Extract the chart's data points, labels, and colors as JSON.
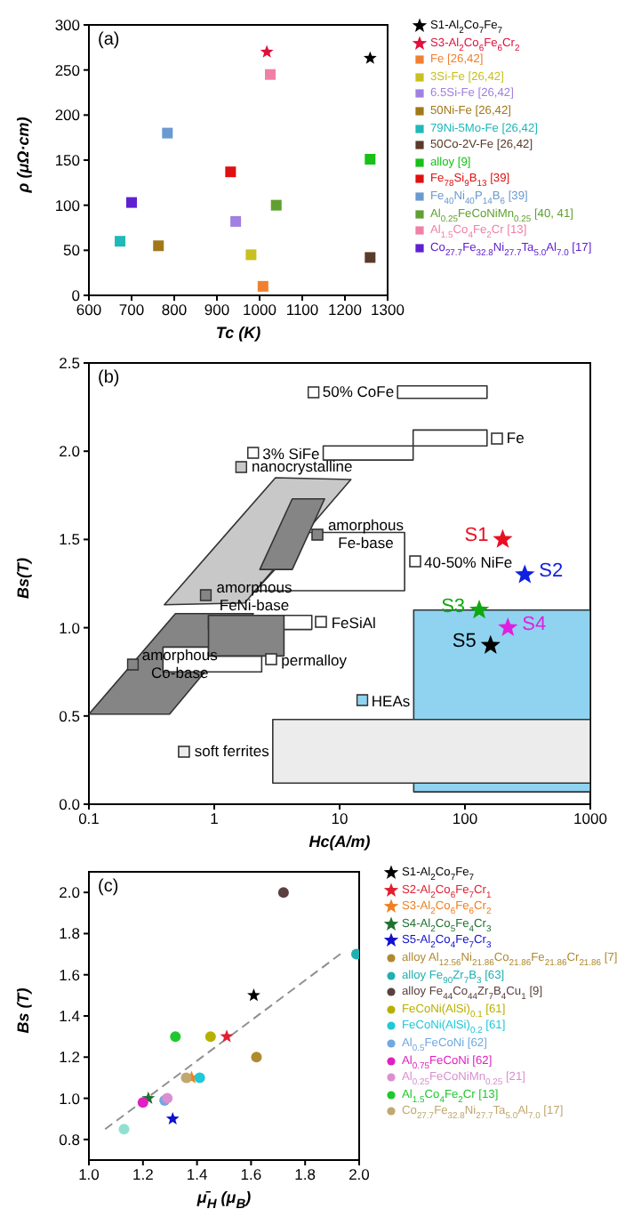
{
  "chart_data": [
    {
      "type": "scatter",
      "title": "(a)",
      "xlabel": "Tc (K)",
      "ylabel": "ρ (μΩ·cm)",
      "xlim": [
        600,
        1300
      ],
      "xticks": [
        600,
        700,
        800,
        900,
        1000,
        1100,
        1200,
        1300
      ],
      "ylim": [
        0,
        300
      ],
      "yticks": [
        0,
        50,
        100,
        150,
        200,
        250,
        300
      ],
      "legend": "right",
      "series": [
        {
          "name": "S1-Al$_{2}$Co$_{7}$Fe$_{7}$",
          "color": "#000000",
          "marker": "star",
          "x": [
            1259
          ],
          "values": [
            263
          ]
        },
        {
          "name": "S3-Al$_{2}$Co$_{6}$Fe$_{6}$Cr$_{2}$",
          "color": "#e0103c",
          "marker": "star",
          "x": [
            1017
          ],
          "values": [
            270
          ]
        },
        {
          "name": "Fe [26,42]",
          "color": "#f08030",
          "marker": "square",
          "x": [
            1008
          ],
          "values": [
            10
          ]
        },
        {
          "name": "3Si-Fe [26,42]",
          "color": "#c8c020",
          "marker": "square",
          "x": [
            980
          ],
          "values": [
            45
          ]
        },
        {
          "name": "6.5Si-Fe [26,42]",
          "color": "#a080e0",
          "marker": "square",
          "x": [
            944
          ],
          "values": [
            82
          ]
        },
        {
          "name": "50Ni-Fe [26,42]",
          "color": "#a07818",
          "marker": "square",
          "x": [
            763
          ],
          "values": [
            55
          ]
        },
        {
          "name": "79Ni-5Mo-Fe [26,42]",
          "color": "#20b8b8",
          "marker": "square",
          "x": [
            673
          ],
          "values": [
            60
          ]
        },
        {
          "name": "50Co-2V-Fe [26,42]",
          "color": "#5a3a28",
          "marker": "square",
          "x": [
            1259
          ],
          "values": [
            42
          ]
        },
        {
          "name": "alloy [9]",
          "color": "#18c018",
          "marker": "square",
          "x": [
            1259
          ],
          "values": [
            151
          ]
        },
        {
          "name": "Fe$_{78}$Si$_{9}$B$_{13}$ [39]",
          "color": "#e01010",
          "marker": "square",
          "x": [
            932
          ],
          "values": [
            137
          ]
        },
        {
          "name": "Fe$_{40}$Ni$_{40}$P$_{14}$B$_{6}$ [39]",
          "color": "#6a9ad0",
          "marker": "square",
          "x": [
            784
          ],
          "values": [
            180
          ]
        },
        {
          "name": "Al$_{0.25}$FeCoNiMn$_{0.25}$ [40, 41]",
          "color": "#60a030",
          "marker": "square",
          "x": [
            1039
          ],
          "values": [
            100
          ]
        },
        {
          "name": "Al$_{1.5}$Co$_{4}$Fe$_{2}$Cr [13]",
          "color": "#f080a8",
          "marker": "square",
          "x": [
            1025
          ],
          "values": [
            245
          ]
        },
        {
          "name": "Co$_{27.7}$Fe$_{32.8}$Ni$_{27.7}$Ta$_{5.0}$Al$_{7.0}$ [17]",
          "color": "#6020d0",
          "marker": "square",
          "x": [
            700
          ],
          "values": [
            103
          ]
        }
      ]
    },
    {
      "type": "scatter",
      "title": "(b)",
      "xlabel": "Hc(A/m)",
      "ylabel": "Bs(T)",
      "log": "x",
      "xlim": [
        0.1,
        1000
      ],
      "xticks": [
        0.1,
        1,
        10,
        100,
        1000
      ],
      "ylim": [
        0,
        2.5
      ],
      "yticks": [
        {
          "value": 0,
          "label": "0.0"
        },
        0.5,
        {
          "value": 1,
          "label": "1.0"
        },
        1.5,
        {
          "value": 2,
          "label": "2.0"
        },
        2.5
      ],
      "legend": "center",
      "series": [
        {
          "type": "area",
          "name": "50% CoFe",
          "color": "#ffffff",
          "x": [
            29,
            150,
            150,
            29,
            29
          ],
          "values": [
            2.3,
            2.3,
            2.37,
            2.37,
            2.3
          ]
        },
        {
          "type": "area",
          "name": "3% SiFe",
          "color": "#ffffff",
          "x": [
            7.4,
            38.6,
            38.6,
            7.4,
            7.4
          ],
          "values": [
            1.95,
            1.95,
            2.03,
            2.03,
            1.95
          ]
        },
        {
          "type": "area",
          "name": "Fe",
          "color": "#ffffff",
          "x": [
            38.6,
            150,
            150,
            38.6,
            38.6
          ],
          "values": [
            2.03,
            2.03,
            2.12,
            2.12,
            2.03
          ]
        },
        {
          "type": "area",
          "name": "nanocrystalline",
          "color": "#c8c8c8",
          "x": [
            0.4,
            1.75,
            12.3,
            3.08,
            0.4
          ],
          "values": [
            1.13,
            1.14,
            1.84,
            1.85,
            1.13
          ]
        },
        {
          "type": "area",
          "name": "40-50% NiFe",
          "color": "#ffffff",
          "x": [
            2.13,
            33,
            33,
            5.7,
            2.13
          ],
          "values": [
            1.21,
            1.21,
            1.54,
            1.54,
            1.21
          ]
        },
        {
          "type": "area",
          "name": "amorphous\nFe-base",
          "color": "#858585",
          "x": [
            2.31,
            4.19,
            7.59,
            4.19,
            2.31
          ],
          "values": [
            1.33,
            1.33,
            1.73,
            1.73,
            1.33
          ]
        },
        {
          "type": "area",
          "name": "amorphous\nCo-base",
          "color": "#858585",
          "x": [
            0.1,
            0.44,
            2.05,
            0.49,
            0.1
          ],
          "values": [
            0.51,
            0.51,
            1.08,
            1.08,
            0.51
          ]
        },
        {
          "type": "area",
          "name": "FeSiAl",
          "color": "#ffffff",
          "x": [
            0.9,
            6,
            6,
            0.9,
            0.9
          ],
          "values": [
            0.99,
            0.99,
            1.07,
            1.07,
            0.99
          ]
        },
        {
          "type": "area",
          "name": "permalloy",
          "color": "#ffffff",
          "x": [
            0.39,
            2.39,
            2.39,
            0.9,
            0.9,
            0.39,
            0.39
          ],
          "values": [
            0.75,
            0.75,
            0.84,
            0.84,
            0.89,
            0.89,
            0.75
          ]
        },
        {
          "type": "area",
          "name": "amorphous\nFeNi-base",
          "color": "#858585",
          "x": [
            0.9,
            3.6,
            3.6,
            0.9,
            0.9
          ],
          "values": [
            0.84,
            0.84,
            1.07,
            1.07,
            0.84
          ]
        },
        {
          "type": "area",
          "name": "HEAs",
          "color": "#8fd3f0",
          "x": [
            39,
            1000,
            1000,
            39,
            39
          ],
          "values": [
            0.07,
            0.07,
            1.1,
            1.1,
            0.07
          ]
        },
        {
          "type": "area",
          "name": "soft ferrites",
          "color": "#ececec",
          "x": [
            2.93,
            1000,
            1000,
            2.93,
            2.93
          ],
          "values": [
            0.12,
            0.12,
            0.48,
            0.48,
            0.12
          ]
        },
        {
          "name": "S1",
          "color": "#e81020",
          "marker": "star",
          "x": [
            200
          ],
          "values": [
            1.5
          ]
        },
        {
          "name": "S2",
          "color": "#1020e0",
          "marker": "star",
          "x": [
            300
          ],
          "values": [
            1.3
          ]
        },
        {
          "name": "S3",
          "color": "#10a810",
          "marker": "star",
          "x": [
            130
          ],
          "values": [
            1.1
          ]
        },
        {
          "name": "S4",
          "color": "#e020e0",
          "marker": "star",
          "x": [
            220
          ],
          "values": [
            1.0
          ]
        },
        {
          "name": "S5",
          "color": "#000000",
          "marker": "star",
          "x": [
            160
          ],
          "values": [
            0.9
          ]
        }
      ]
    },
    {
      "type": "scatter",
      "title": "(c)",
      "xlabel": "μ̄$_{H}$ (μ$_{B}$)",
      "ylabel": "Bs (T)",
      "xlim": [
        1.0,
        2.0
      ],
      "xticks": [
        {
          "value": 1,
          "label": "1.0"
        },
        1.2,
        1.4,
        1.6,
        1.8,
        {
          "value": 2,
          "label": "2.0"
        }
      ],
      "ylim": [
        0.7,
        2.1
      ],
      "yticks": [
        0.8,
        {
          "value": 1,
          "label": "1.0"
        },
        1.2,
        1.4,
        1.6,
        1.8,
        {
          "value": 2,
          "label": "2.0"
        }
      ],
      "legend": "right",
      "series": [
        {
          "type": "line",
          "color": "#909090",
          "line_style": "dashed",
          "x": [
            1.06,
            1.94
          ],
          "values": [
            0.85,
            1.71
          ]
        },
        {
          "name": "S1-Al$_{2}$Co$_{7}$Fe$_{7}$",
          "color": "#000000",
          "marker": "star",
          "x": [
            1.61
          ],
          "values": [
            1.5
          ]
        },
        {
          "name": "S2-Al$_{2}$Co$_{6}$Fe$_{7}$Cr$_{1}$",
          "color": "#e02030",
          "marker": "star",
          "x": [
            1.51
          ],
          "values": [
            1.3
          ]
        },
        {
          "name": "S3-Al$_{2}$Co$_{6}$Fe$_{6}$Cr$_{2}$",
          "color": "#f08020",
          "marker": "star",
          "x": [
            1.38
          ],
          "values": [
            1.1
          ]
        },
        {
          "name": "S4-Al$_{2}$Co$_{5}$Fe$_{4}$Cr$_{3}$",
          "color": "#207030",
          "marker": "star",
          "x": [
            1.22
          ],
          "values": [
            1.0
          ]
        },
        {
          "name": "S5-Al$_{2}$Co$_{4}$Fe$_{7}$Cr$_{3}$",
          "color": "#1010d0",
          "marker": "star",
          "x": [
            1.31
          ],
          "values": [
            0.9
          ]
        },
        {
          "name": "alloy Al$_{12.56}$Ni$_{21.86}$Co$_{21.86}$Fe$_{21.86}$Cr$_{21.86}$ [7]",
          "color": "#b08a30",
          "marker": "circle",
          "x": [
            1.62
          ],
          "values": [
            1.2
          ]
        },
        {
          "name": "alloy Fe$_{90}$Zr$_{7}$B$_{3}$ [63]",
          "color": "#20b0b0",
          "marker": "circle",
          "x": [
            1.99
          ],
          "values": [
            1.7
          ]
        },
        {
          "name": "alloy Fe$_{44}$Co$_{44}$Zr$_{7}$B$_{4}$Cu$_{1}$ [9]",
          "color": "#5a4040",
          "marker": "circle",
          "x": [
            1.72
          ],
          "values": [
            2.0
          ]
        },
        {
          "name": "FeCoNi(AlSi)$_{0.1}$ [61]",
          "color": "#b8b000",
          "marker": "circle",
          "x": [
            1.45
          ],
          "values": [
            1.3
          ]
        },
        {
          "name": "FeCoNi(AlSi)$_{0.2}$ [61]",
          "color": "#20c8d8",
          "marker": "circle",
          "x": [
            1.41
          ],
          "values": [
            1.1
          ]
        },
        {
          "name": "Al$_{0.5}$FeCoNi [62]",
          "color": "#70a8e0",
          "marker": "circle",
          "x": [
            1.28
          ],
          "values": [
            0.99
          ]
        },
        {
          "name": "Al$_{0.75}$FeCoNi [62]",
          "color": "#e020c0",
          "marker": "circle",
          "x": [
            1.2
          ],
          "values": [
            0.98
          ]
        },
        {
          "name": "Al$_{0.25}$FeCoNiMn$_{0.25}$ [21]",
          "color": "#d890d0",
          "marker": "circle",
          "x": [
            1.29
          ],
          "values": [
            1.0
          ]
        },
        {
          "name": "Al$_{1.5}$Co$_{4}$Fe$_{2}$Cr [13]",
          "color": "#20c830",
          "marker": "circle",
          "x": [
            1.32
          ],
          "values": [
            1.3
          ]
        },
        {
          "name": "Co$_{27.7}$Fe$_{32.8}$Ni$_{27.7}$Ta$_{5.0}$Al$_{7.0}$ [17]",
          "color": "#c0a870",
          "marker": "circle",
          "x": [
            1.36
          ],
          "values": [
            1.1
          ]
        },
        {
          "color": "#90e0d0",
          "marker": "circle",
          "x": [
            1.13
          ],
          "values": [
            0.85
          ]
        }
      ]
    }
  ]
}
